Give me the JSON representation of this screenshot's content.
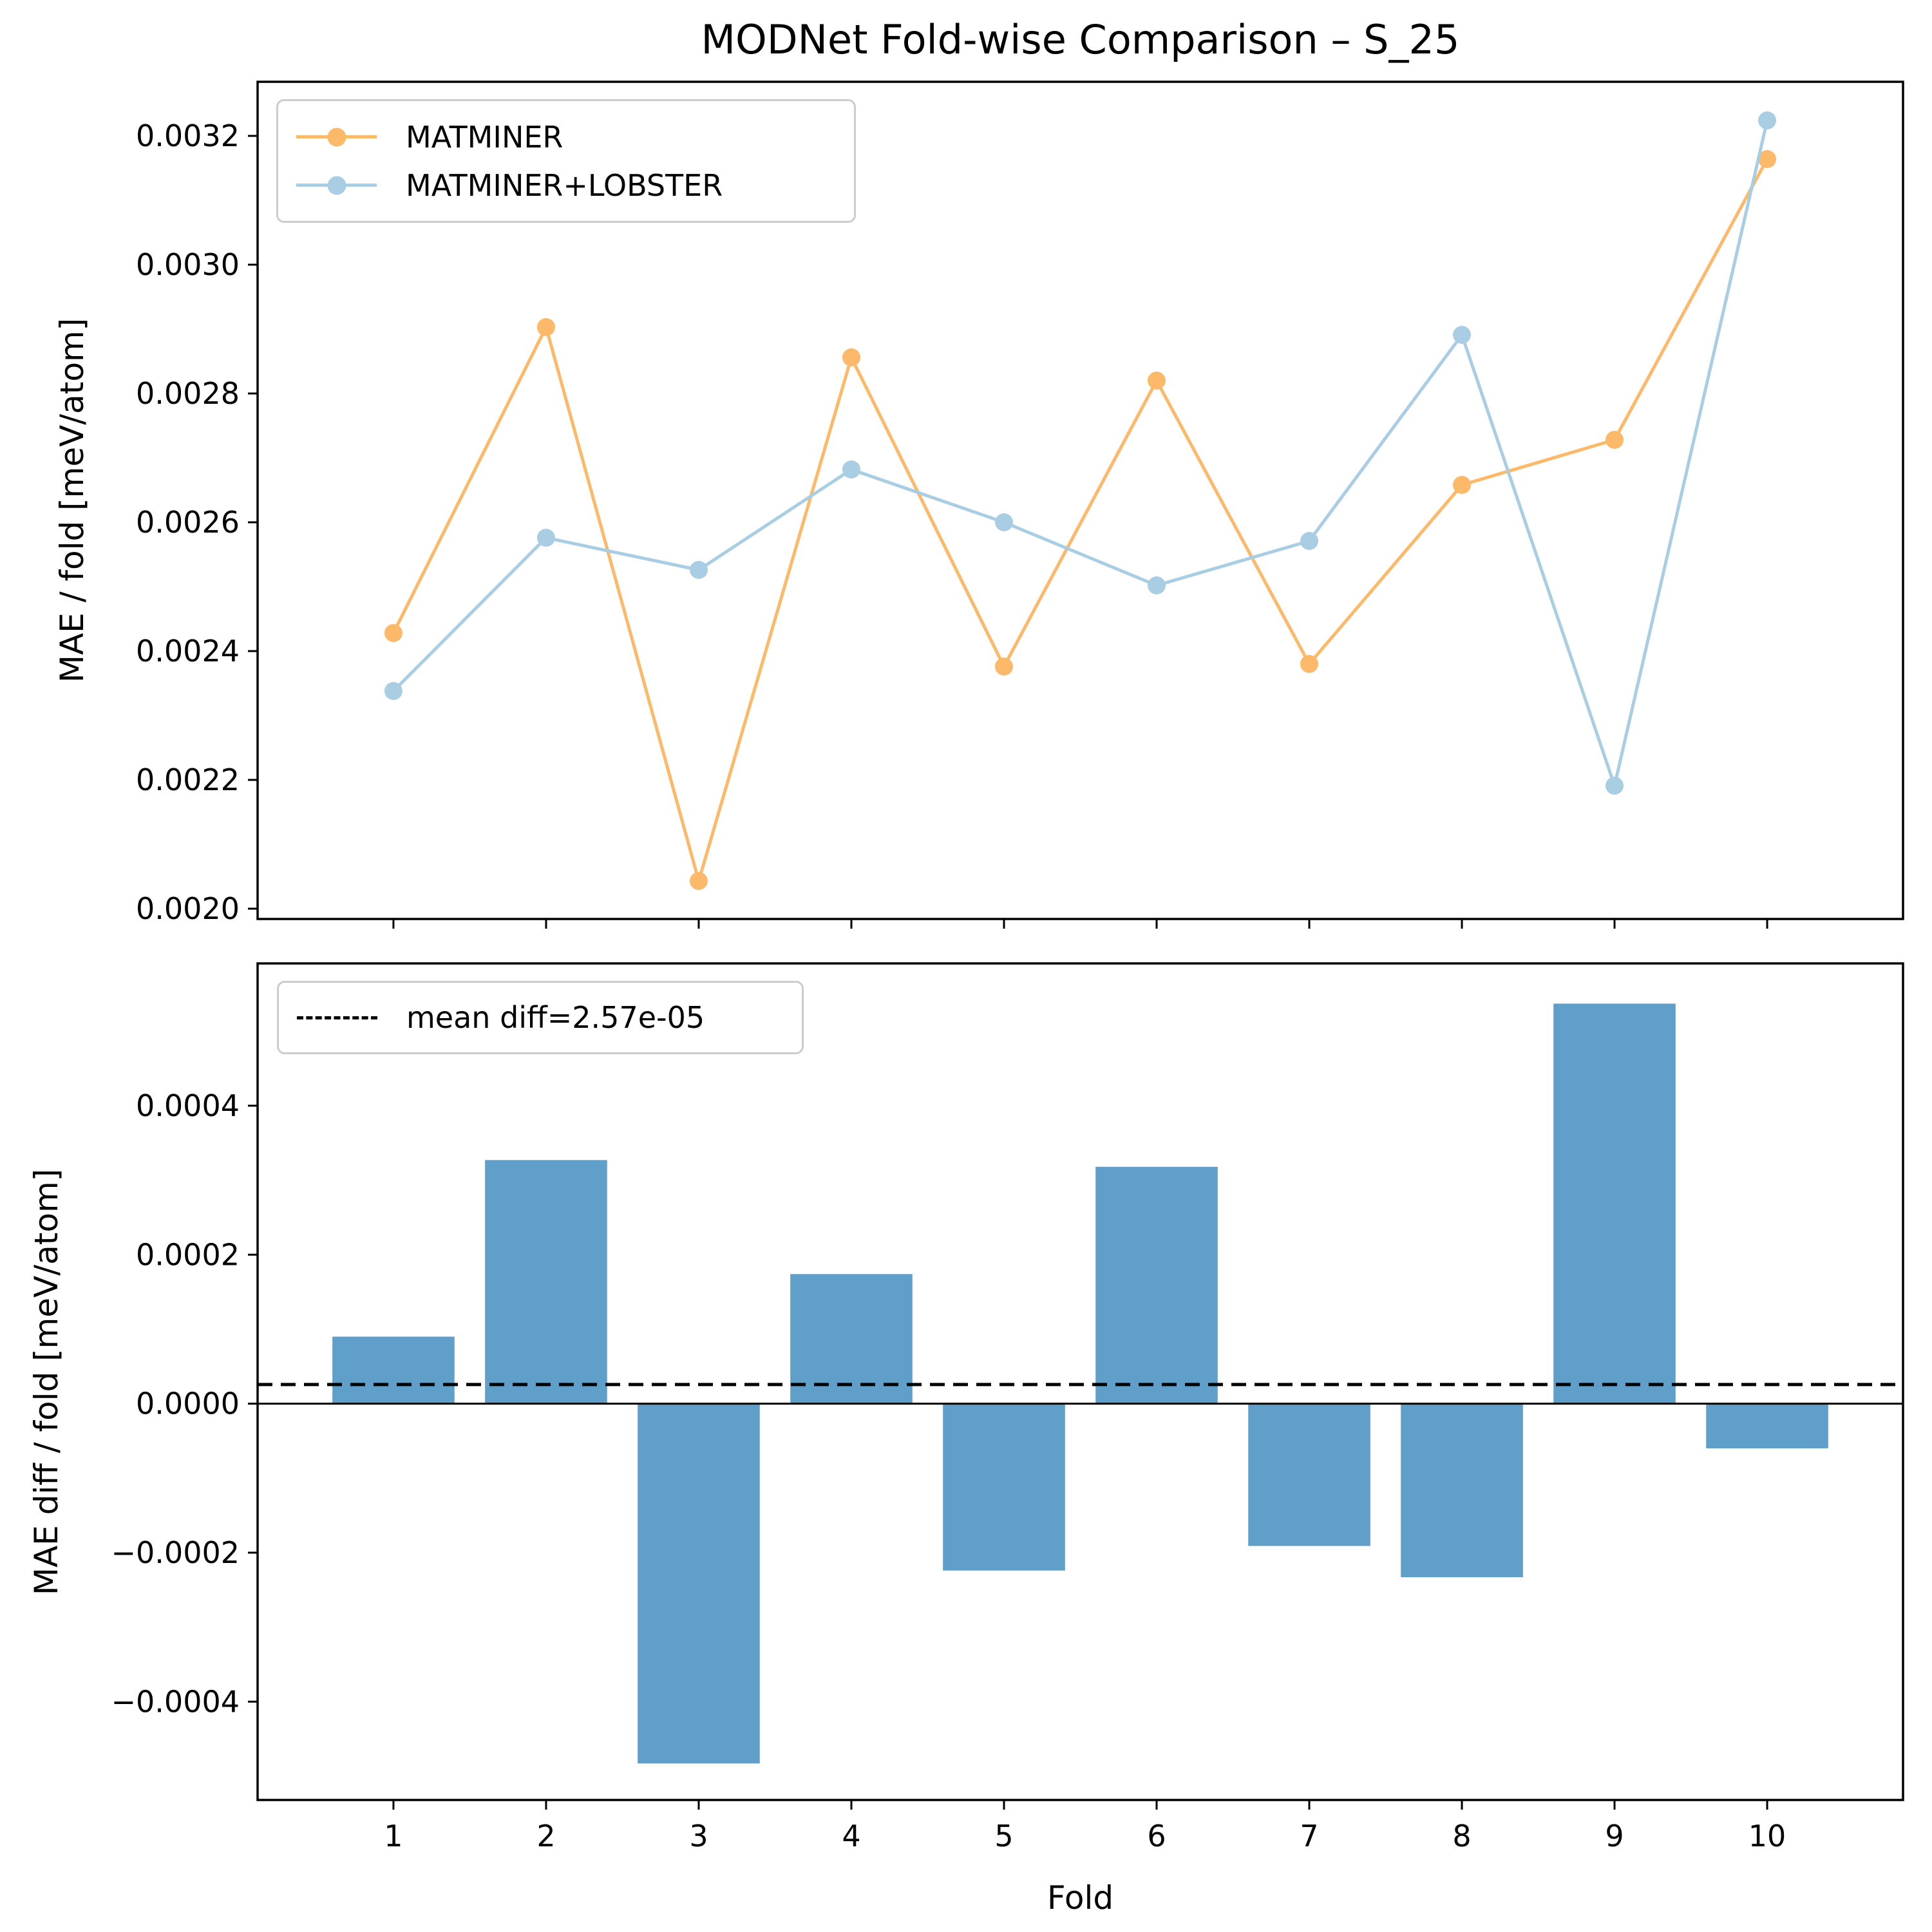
{
  "figure": {
    "background": "#ffffff",
    "text_color": "#000000"
  },
  "chart_data": [
    {
      "type": "line",
      "title": "MODNet Fold-wise Comparison – S_25",
      "xlabel": "",
      "ylabel": "MAE / fold [meV/atom]",
      "x": [
        1,
        2,
        3,
        4,
        5,
        6,
        7,
        8,
        9,
        10
      ],
      "series": [
        {
          "name": "MATMINER",
          "color": "#fbb969",
          "marker": "circle",
          "values": [
            0.002428,
            0.002903,
            0.002043,
            0.002856,
            0.002376,
            0.00282,
            0.00238,
            0.002658,
            0.002728,
            0.003164
          ]
        },
        {
          "name": "MATMINER+LOBSTER",
          "color": "#a9cde2",
          "marker": "circle",
          "values": [
            0.002338,
            0.002576,
            0.002526,
            0.002682,
            0.0026,
            0.002502,
            0.002571,
            0.002891,
            0.002191,
            0.003224
          ]
        }
      ],
      "ylim": [
        0.001984,
        0.003284
      ],
      "yticks": [
        {
          "value": 0.002,
          "label": "0.0020"
        },
        {
          "value": 0.0022,
          "label": "0.0022"
        },
        {
          "value": 0.0024,
          "label": "0.0024"
        },
        {
          "value": 0.0026,
          "label": "0.0026"
        },
        {
          "value": 0.0028,
          "label": "0.0028"
        },
        {
          "value": 0.003,
          "label": "0.0030"
        },
        {
          "value": 0.0032,
          "label": "0.0032"
        }
      ],
      "legend_position": "upper left",
      "grid": false
    },
    {
      "type": "bar",
      "title": "",
      "xlabel": "Fold",
      "ylabel": "MAE diff / fold [meV/atom]",
      "categories": [
        1,
        2,
        3,
        4,
        5,
        6,
        7,
        8,
        9,
        10
      ],
      "xtick_labels": [
        "1",
        "2",
        "3",
        "4",
        "5",
        "6",
        "7",
        "8",
        "9",
        "10"
      ],
      "values": [
        9e-05,
        0.000327,
        -0.000483,
        0.000174,
        -0.000224,
        0.000318,
        -0.000191,
        -0.000233,
        0.000537,
        -6e-05
      ],
      "bar_color": "#619fcb",
      "bar_width_units": 0.8,
      "mean_diff": 2.57e-05,
      "legend_label": "mean diff=2.57e-05",
      "mean_line_color": "#000000",
      "zero_line": 0,
      "ylim": [
        -0.000532,
        0.000591
      ],
      "yticks": [
        {
          "value": -0.0004,
          "label": "−0.0004"
        },
        {
          "value": -0.0002,
          "label": "−0.0002"
        },
        {
          "value": 0.0,
          "label": "0.0000"
        },
        {
          "value": 0.0002,
          "label": "0.0002"
        },
        {
          "value": 0.0004,
          "label": "0.0004"
        }
      ],
      "legend_position": "upper left",
      "grid": false
    }
  ]
}
